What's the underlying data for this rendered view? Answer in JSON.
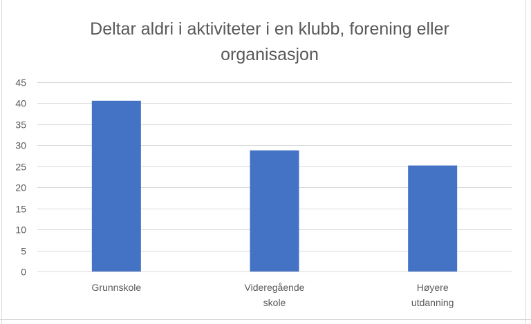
{
  "chart_data": {
    "type": "bar",
    "title": "Deltar aldri i aktiviteter i en klubb, forening eller organisasjon",
    "title_lines": [
      "Deltar aldri i aktiviteter i en klubb, forening eller",
      "organisasjon"
    ],
    "categories": [
      "Grunnskole",
      "Videregående skole",
      "Høyere utdanning"
    ],
    "category_lines": [
      [
        "Grunnskole"
      ],
      [
        "Videregående",
        "skole"
      ],
      [
        "Høyere",
        "utdanning"
      ]
    ],
    "values": [
      40.6,
      28.8,
      25.2
    ],
    "xlabel": "",
    "ylabel": "",
    "ylim": [
      0,
      45
    ],
    "yticks": [
      0,
      5,
      10,
      15,
      20,
      25,
      30,
      35,
      40,
      45
    ],
    "grid": true,
    "legend": "none",
    "bar_color": "#4472C4",
    "grid_color": "#d9d9d9",
    "text_color": "#595959"
  }
}
